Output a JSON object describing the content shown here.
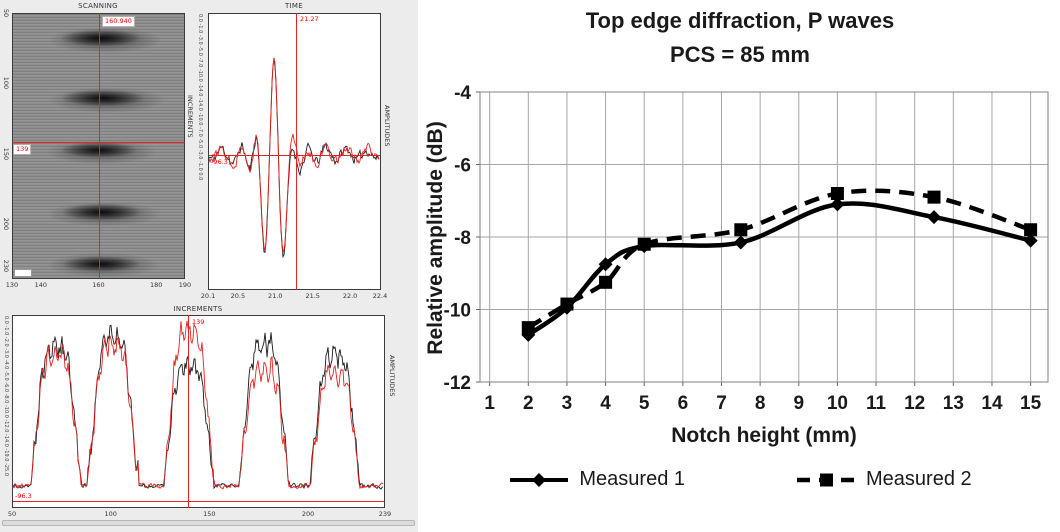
{
  "ut_viewer": {
    "scanning": {
      "title": "SCANNING",
      "cursor_x_value": "160.940",
      "cursor_y_value": "139",
      "x_ticks": [
        "130",
        "140",
        "160",
        "180",
        "190"
      ],
      "y_ticks": [
        "50",
        "100",
        "150",
        "200",
        "230"
      ],
      "right_label": "INCREMENTS"
    },
    "time": {
      "title": "TIME",
      "cursor_value": "21.27",
      "baseline_value": "-96.3",
      "x_ticks": [
        "20.1",
        "20.5",
        "21.0",
        "21.5",
        "22.0",
        "22.4"
      ],
      "left_scale": "0.0 -1.0 -3.0 -5.0 -7.0 -10.0 -14.0  -14.0 -10.0 -7.0 -5.0 -3.0 -1.0 0.0",
      "right_label": "AMPLITUDES"
    },
    "increments": {
      "title": "INCREMENTS",
      "cursor_value": "139",
      "baseline_value": "-96.3",
      "x_ticks": [
        "50",
        "100",
        "150",
        "200",
        "239"
      ],
      "left_scale": "0.0 -1.0 -2.0 -3.0 -4.0 -5.0 -6.0 -8.0 -10.0 -12.0 -14.0 -19.0 -25.0",
      "right_label": "AMPLITUDES"
    }
  },
  "chart_data": {
    "type": "line",
    "title": "Top edge diffraction, P waves",
    "subtitle": "PCS = 85 mm",
    "xlabel": "Notch height (mm)",
    "ylabel": "Relative amplitude (dB)",
    "xlim": [
      1,
      15
    ],
    "ylim": [
      -12,
      -4
    ],
    "x_ticks": [
      1,
      2,
      3,
      4,
      5,
      6,
      7,
      8,
      9,
      10,
      11,
      12,
      13,
      14,
      15
    ],
    "y_ticks": [
      -4,
      -6,
      -8,
      -10,
      -12
    ],
    "grid": true,
    "legend_position": "bottom",
    "line_color": "#000000",
    "grid_color": "#a6a6a6",
    "series": [
      {
        "name": "Measured 1",
        "line": "solid",
        "marker": "diamond",
        "x": [
          2,
          3,
          4,
          5,
          7.5,
          10,
          12.5,
          15
        ],
        "y": [
          -10.7,
          -9.95,
          -8.75,
          -8.25,
          -8.15,
          -7.1,
          -7.45,
          -8.1
        ]
      },
      {
        "name": "Measured 2",
        "line": "dashed",
        "marker": "square",
        "x": [
          2,
          3,
          4,
          5,
          7.5,
          10,
          12.5,
          15
        ],
        "y": [
          -10.5,
          -9.85,
          -9.25,
          -8.2,
          -7.8,
          -6.8,
          -6.9,
          -7.8
        ]
      }
    ]
  }
}
